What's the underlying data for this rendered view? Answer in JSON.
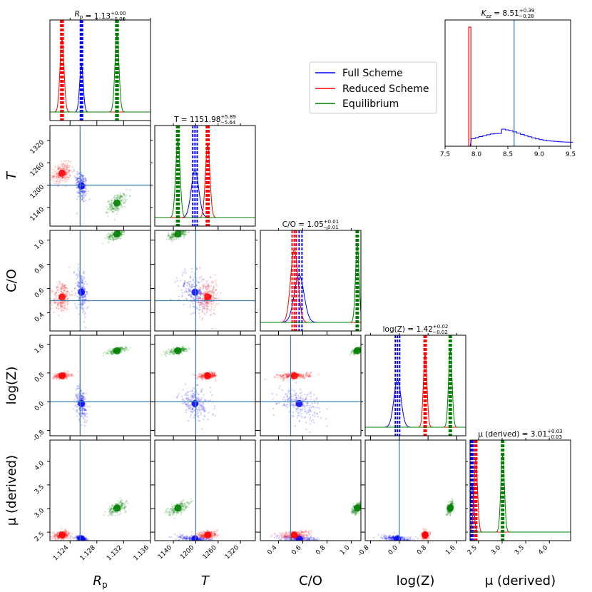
{
  "chart_data": {
    "type": "scatter",
    "colors": {
      "Full Scheme": "#0000ff",
      "Reduced Scheme": "#ff0000",
      "Equilibrium": "#008000",
      "truth": "#4682b4"
    },
    "legend": {
      "placement": "upper-right area",
      "entries": [
        "Full Scheme",
        "Reduced Scheme",
        "Equilibrium"
      ]
    },
    "parameters": [
      {
        "key": "Rp",
        "label": "R",
        "label_sub": "p",
        "range": [
          1.121,
          1.136
        ],
        "ticks": [
          "1.124",
          "1.128",
          "1.132",
          "1.136"
        ],
        "truth": 1.1255
      },
      {
        "key": "T",
        "label": "T",
        "range": [
          1090,
          1360
        ],
        "ticks": [
          "1140",
          "1200",
          "1260",
          "1320"
        ],
        "truth": 1200
      },
      {
        "key": "CO",
        "label": "C/O",
        "range": [
          0.25,
          1.08
        ],
        "ticks": [
          "0.4",
          "0.6",
          "0.8",
          "1.0"
        ],
        "truth": 0.5
      },
      {
        "key": "logZ",
        "label": "log(Z)",
        "range": [
          -0.95,
          1.85
        ],
        "ticks": [
          "-0.8",
          "0.0",
          "0.8",
          "1.6"
        ],
        "truth": 0.0
      },
      {
        "key": "mu",
        "label": "μ (derived)",
        "range": [
          2.32,
          4.45
        ],
        "ticks": [
          "2.5",
          "3.0",
          "3.5",
          "4.0"
        ],
        "truth": null
      }
    ],
    "row_ticks": {
      "T": [
        "1140",
        "1200",
        "1260",
        "1320"
      ],
      "CO": [
        "0.4",
        "0.6",
        "0.8",
        "1.0"
      ],
      "logZ": [
        "-0.8",
        "0.0",
        "0.8",
        "1.6"
      ],
      "mu": [
        "2.5",
        "3.0",
        "3.5",
        "4.0"
      ]
    },
    "titles": {
      "Rp": {
        "name": "R",
        "sub": "p",
        "value": "1.13",
        "plus": "+0.00",
        "minus": "−0.00"
      },
      "T": {
        "name": "T",
        "value": "1151.98",
        "plus": "+5.89",
        "minus": "−5.64"
      },
      "CO": {
        "name": "C/O",
        "value": "1.05",
        "plus": "+0.01",
        "minus": "−0.01"
      },
      "logZ": {
        "name": "log(Z)",
        "value": "1.42",
        "plus": "+0.02",
        "minus": "−0.02"
      },
      "mu": {
        "name": "μ (derived)",
        "value": "3.01",
        "plus": "+0.03",
        "minus": "−0.03"
      },
      "Kzz": {
        "name": "K",
        "sub": "zz",
        "value": "8.51",
        "plus": "+0.39",
        "minus": "−0.28"
      }
    },
    "posteriors": {
      "Full Scheme": {
        "Rp": [
          1.1257,
          0.0002
        ],
        "T": [
          1198,
          10
        ],
        "CO": [
          0.57,
          0.04
        ],
        "logZ": [
          -0.05,
          0.1
        ],
        "mu": [
          2.36,
          0.015
        ]
      },
      "Reduced Scheme": {
        "Rp": [
          1.1228,
          0.0003
        ],
        "T": [
          1232,
          6
        ],
        "CO": [
          0.53,
          0.03
        ],
        "logZ": [
          0.72,
          0.02
        ],
        "mu": [
          2.44,
          0.02
        ]
      },
      "Equilibrium": {
        "Rp": [
          1.131,
          0.0003
        ],
        "T": [
          1151.98,
          5.8
        ],
        "CO": [
          1.05,
          0.01
        ],
        "logZ": [
          1.42,
          0.02
        ],
        "mu": [
          3.01,
          0.03
        ]
      }
    },
    "kzz_panel": {
      "xrange": [
        7.5,
        9.5
      ],
      "ticks": [
        "7.5",
        "8.0",
        "8.5",
        "9.0",
        "9.5"
      ],
      "truth": 8.6,
      "reduced_spike": 7.9
    }
  }
}
